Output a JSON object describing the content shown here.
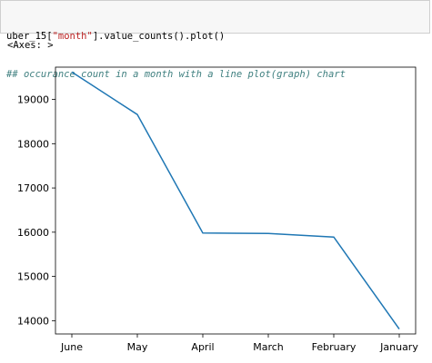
{
  "code_cell": {
    "line1": {
      "prefix": "uber_15[",
      "string": "\"month\"",
      "suffix": "].value_counts().plot()"
    },
    "line2": "## occurance count in a month with a line plot(graph) chart"
  },
  "output_repr": "<Axes: >",
  "chart_data": {
    "type": "line",
    "categories": [
      "June",
      "May",
      "April",
      "March",
      "February",
      "January"
    ],
    "values": [
      19620,
      18660,
      15980,
      15970,
      15890,
      13810
    ],
    "yticks": [
      14000,
      15000,
      16000,
      17000,
      18000,
      19000
    ],
    "ylim": [
      13700,
      19730
    ],
    "title": "",
    "xlabel": "",
    "ylabel": "",
    "line_color": "#1f77b4",
    "grid": false
  }
}
